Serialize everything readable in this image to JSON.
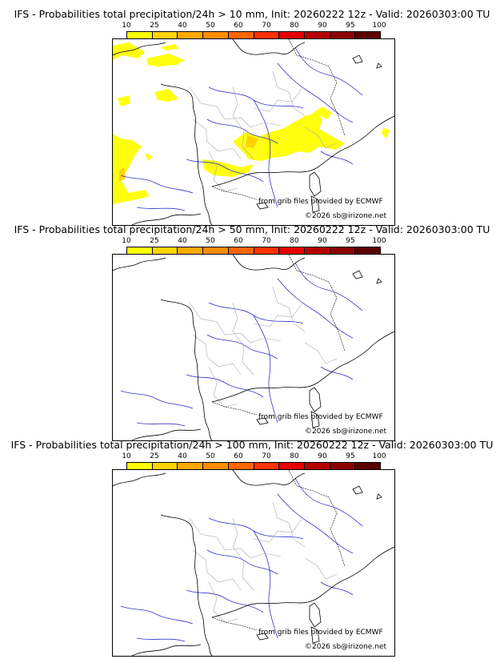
{
  "panels": [
    {
      "title": "IFS - Probabilities total precipitation/24h > 10 mm, Init: 20260222 12z - Valid: 20260303:00 TU",
      "source": "from grib files provided by ECMWF",
      "copyright": "©2026 sb@irizone.net",
      "precip_areas": "yes"
    },
    {
      "title": "IFS - Probabilities total precipitation/24h > 50 mm, Init: 20260222 12z - Valid: 20260303:00 TU",
      "source": "from grib files provided by ECMWF",
      "copyright": "©2026 sb@irizone.net",
      "precip_areas": "none"
    },
    {
      "title": "IFS - Probabilities total precipitation/24h > 100 mm, Init: 20260222 12z - Valid: 20260303:00 TU",
      "source": "from grib files provided by ECMWF",
      "copyright": "©2026 sb@irizone.net",
      "precip_areas": "none"
    }
  ],
  "scale": {
    "labels": [
      "10",
      "25",
      "40",
      "50",
      "60",
      "70",
      "80",
      "90",
      "95",
      "100"
    ],
    "colors": [
      "#ffff00",
      "#ffd400",
      "#ffaa00",
      "#ff8c00",
      "#ff6600",
      "#ff3300",
      "#e60000",
      "#b40000",
      "#8c0000",
      "#5a0000"
    ]
  },
  "map_colors": {
    "coast": "#000000",
    "rivers": "#3333cc",
    "borders": "#aaaaaa",
    "precip": "#ffff00"
  }
}
